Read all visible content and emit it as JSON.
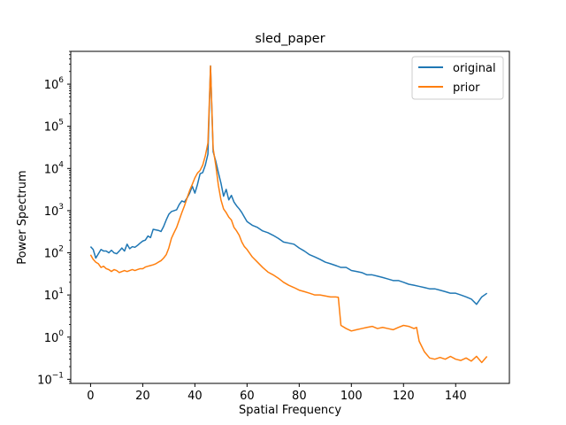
{
  "chart_data": {
    "type": "line",
    "title": "sled_paper",
    "xlabel": "Spatial Frequency",
    "ylabel": "Power Spectrum",
    "yscale": "log",
    "xlim": [
      -7.6,
      160.6
    ],
    "ylim": [
      0.08,
      6000000
    ],
    "xticks": [
      0,
      20,
      40,
      60,
      80,
      100,
      120,
      140
    ],
    "xtick_labels": [
      "0",
      "20",
      "40",
      "60",
      "80",
      "100",
      "120",
      "140"
    ],
    "yticks": [
      0.1,
      1,
      10,
      100,
      1000,
      10000,
      100000,
      1000000
    ],
    "ytick_labels": [
      {
        "base": "10",
        "exp": "−1"
      },
      {
        "base": "10",
        "exp": "0"
      },
      {
        "base": "10",
        "exp": "1"
      },
      {
        "base": "10",
        "exp": "2"
      },
      {
        "base": "10",
        "exp": "3"
      },
      {
        "base": "10",
        "exp": "4"
      },
      {
        "base": "10",
        "exp": "5"
      },
      {
        "base": "10",
        "exp": "6"
      }
    ],
    "grid": false,
    "legend_position": "top-right",
    "series": [
      {
        "name": "original",
        "color": "#1f77b4",
        "x": [
          0,
          1,
          2,
          3,
          4,
          5,
          6,
          7,
          8,
          9,
          10,
          11,
          12,
          13,
          14,
          15,
          16,
          17,
          18,
          19,
          20,
          21,
          22,
          23,
          24,
          25,
          26,
          27,
          28,
          29,
          30,
          31,
          32,
          33,
          34,
          35,
          36,
          37,
          38,
          39,
          40,
          41,
          42,
          43,
          44,
          45,
          46,
          47,
          48,
          49,
          50,
          51,
          52,
          53,
          54,
          55,
          56,
          57,
          58,
          59,
          60,
          62,
          64,
          66,
          68,
          70,
          72,
          74,
          76,
          78,
          80,
          82,
          84,
          86,
          88,
          90,
          92,
          94,
          96,
          98,
          100,
          102,
          104,
          106,
          108,
          110,
          112,
          114,
          116,
          118,
          120,
          122,
          124,
          126,
          128,
          130,
          132,
          134,
          136,
          138,
          140,
          142,
          144,
          146,
          148,
          150,
          152
        ],
        "y": [
          140,
          120,
          75,
          95,
          120,
          110,
          110,
          100,
          115,
          100,
          95,
          110,
          130,
          110,
          160,
          125,
          140,
          135,
          150,
          170,
          190,
          200,
          250,
          230,
          360,
          350,
          340,
          320,
          420,
          600,
          820,
          950,
          1000,
          1050,
          1400,
          1700,
          1600,
          2000,
          2600,
          3800,
          2600,
          4200,
          7500,
          8000,
          12000,
          22000,
          2700000,
          25000,
          15000,
          8000,
          4500,
          2200,
          3200,
          1800,
          2300,
          1600,
          1300,
          1100,
          900,
          700,
          550,
          450,
          400,
          330,
          300,
          260,
          220,
          180,
          170,
          160,
          130,
          110,
          90,
          80,
          70,
          60,
          55,
          50,
          45,
          45,
          38,
          36,
          34,
          30,
          30,
          28,
          26,
          24,
          22,
          22,
          20,
          18,
          17,
          16,
          15,
          14,
          14,
          13,
          12,
          11,
          11,
          10,
          9,
          8,
          6,
          9,
          11
        ]
      },
      {
        "name": "prior",
        "color": "#ff7f0e",
        "x": [
          0,
          1,
          2,
          3,
          4,
          5,
          6,
          7,
          8,
          9,
          10,
          11,
          12,
          13,
          14,
          15,
          16,
          17,
          18,
          19,
          20,
          21,
          22,
          23,
          24,
          25,
          26,
          27,
          28,
          29,
          30,
          31,
          32,
          33,
          34,
          35,
          36,
          37,
          38,
          39,
          40,
          41,
          42,
          43,
          44,
          45,
          46,
          47,
          48,
          49,
          50,
          51,
          52,
          53,
          54,
          55,
          56,
          57,
          58,
          59,
          60,
          62,
          64,
          66,
          68,
          70,
          72,
          74,
          76,
          78,
          80,
          82,
          84,
          86,
          88,
          90,
          92,
          94,
          95,
          96,
          98,
          100,
          102,
          104,
          106,
          108,
          110,
          112,
          114,
          116,
          118,
          120,
          122,
          124,
          125,
          126,
          128,
          130,
          132,
          134,
          136,
          138,
          140,
          142,
          144,
          146,
          148,
          150,
          152
        ],
        "y": [
          90,
          70,
          60,
          55,
          45,
          48,
          42,
          40,
          36,
          40,
          38,
          34,
          36,
          38,
          36,
          38,
          40,
          38,
          40,
          42,
          42,
          46,
          48,
          50,
          52,
          55,
          60,
          65,
          75,
          90,
          130,
          220,
          300,
          400,
          600,
          900,
          1300,
          2000,
          3000,
          4200,
          6000,
          7800,
          9000,
          12000,
          20000,
          40000,
          2700000,
          30000,
          12000,
          4000,
          1800,
          1100,
          900,
          700,
          600,
          400,
          330,
          260,
          180,
          140,
          120,
          80,
          60,
          45,
          35,
          30,
          25,
          20,
          17,
          15,
          13,
          12,
          11,
          10,
          10,
          9.5,
          9,
          9,
          8.8,
          1.9,
          1.6,
          1.4,
          1.5,
          1.6,
          1.7,
          1.8,
          1.6,
          1.7,
          1.6,
          1.5,
          1.7,
          1.9,
          1.8,
          1.6,
          1.7,
          0.8,
          0.45,
          0.32,
          0.3,
          0.33,
          0.3,
          0.35,
          0.3,
          0.28,
          0.32,
          0.27,
          0.35,
          0.25,
          0.35
        ]
      }
    ]
  }
}
